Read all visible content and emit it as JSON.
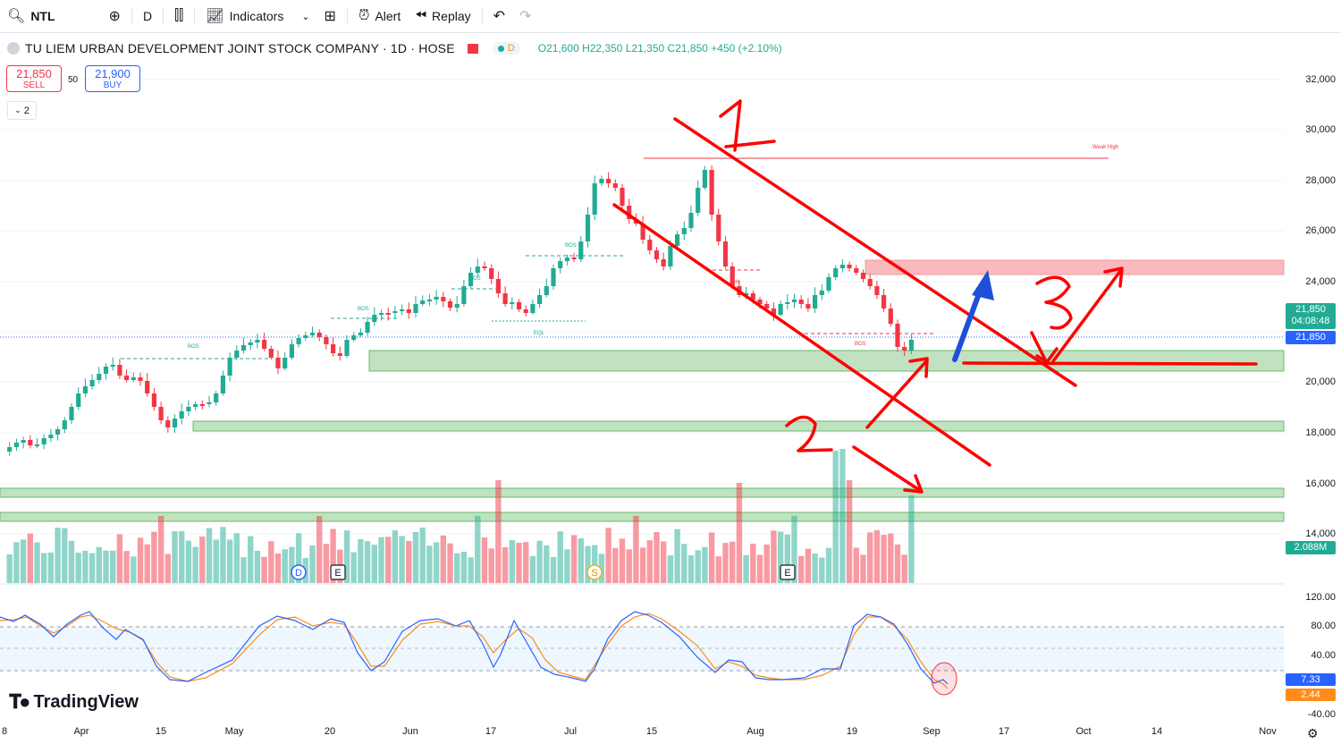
{
  "toolbar": {
    "symbol": "NTL",
    "interval": "D",
    "indicators_label": "Indicators",
    "alert_label": "Alert",
    "replay_label": "Replay"
  },
  "legend": {
    "title": "TU LIEM URBAN DEVELOPMENT JOINT STOCK COMPANY · 1D · HOSE",
    "badge": "D",
    "ohlc": {
      "o": "O21,600",
      "h": "H22,350",
      "l": "L21,350",
      "c": "C21,850",
      "chg": "+450 (+2.10%)"
    }
  },
  "trade": {
    "sell_price": "21,850",
    "sell_label": "SELL",
    "buy_price": "21,900",
    "buy_label": "BUY",
    "spread": "50",
    "indicator_count": "2"
  },
  "price_axis": [
    "32,000",
    "30,000",
    "28,000",
    "26,000",
    "24,000",
    "22,000",
    "20,000",
    "18,000",
    "16,000",
    "14,000"
  ],
  "osc_axis": [
    "120.00",
    "80.00",
    "40.00",
    "-40.00"
  ],
  "tags": {
    "last_price": "21,850",
    "countdown": "04:08:48",
    "current": "21,850",
    "volume": "2.088M",
    "k_value": "7.33",
    "d_value": "2.44"
  },
  "time_axis": [
    "8",
    "Apr",
    "15",
    "May",
    "20",
    "Jun",
    "17",
    "Jul",
    "15",
    "Aug",
    "19",
    "Sep",
    "17",
    "Oct",
    "14",
    "Nov"
  ],
  "annotations": {
    "bos": "BOS",
    "eql": "EQL",
    "choch": "CH",
    "weak_high": "Weak High",
    "events": [
      "D",
      "E",
      "S",
      "E"
    ],
    "hand_numbers": [
      "1",
      "2",
      "3"
    ]
  },
  "branding": "TradingView",
  "colors": {
    "up": "#22ab94",
    "down": "#f23645",
    "zone_green": "#a5d6a7",
    "zone_red": "#f7a1a8",
    "drawing": "#ff0000",
    "blue_arrow": "#1e4fd8"
  }
}
